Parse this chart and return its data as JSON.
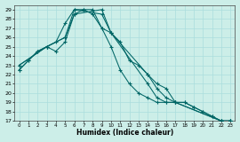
{
  "xlabel": "Humidex (Indice chaleur)",
  "bg_color": "#cceee8",
  "grid_color": "#aadddd",
  "line_color": "#006666",
  "xlim": [
    -0.5,
    23.5
  ],
  "ylim": [
    17,
    29.5
  ],
  "xticks": [
    0,
    1,
    2,
    3,
    4,
    5,
    6,
    7,
    8,
    9,
    10,
    11,
    12,
    13,
    14,
    15,
    16,
    17,
    18,
    19,
    20,
    21,
    22,
    23
  ],
  "yticks": [
    17,
    18,
    19,
    20,
    21,
    22,
    23,
    24,
    25,
    26,
    27,
    28,
    29
  ],
  "series": [
    {
      "x": [
        0,
        1,
        2,
        3,
        4,
        5,
        6,
        7,
        8,
        9,
        10,
        11,
        12,
        13,
        14,
        15,
        16,
        17,
        18,
        19,
        20,
        21,
        22,
        23
      ],
      "y": [
        22.5,
        23.5,
        24.5,
        25,
        25.5,
        27.5,
        29,
        29,
        28.5,
        27,
        26.5,
        25.5,
        23.5,
        23,
        22,
        21,
        20.5,
        19,
        19,
        18.5,
        18,
        17.5,
        17,
        17
      ]
    },
    {
      "x": [
        0,
        1,
        2,
        3,
        4,
        5,
        6,
        7,
        8,
        9,
        10,
        11,
        12,
        13,
        14,
        15,
        16,
        17,
        18,
        19,
        20,
        21,
        22,
        23
      ],
      "y": [
        22.5,
        23.5,
        24.5,
        25,
        24.5,
        25.5,
        28.5,
        29,
        29,
        27,
        25,
        22.5,
        21,
        20,
        19.5,
        19,
        19,
        19,
        19,
        18.5,
        18,
        17.5,
        17,
        17
      ]
    },
    {
      "x": [
        0,
        3,
        5,
        6,
        9,
        10,
        14,
        15,
        16,
        17,
        22,
        23
      ],
      "y": [
        23,
        25,
        26,
        28.5,
        29,
        26.5,
        22,
        20.5,
        19.5,
        19,
        17,
        17
      ]
    },
    {
      "x": [
        0,
        3,
        5,
        6,
        9,
        10,
        14,
        15,
        16,
        17,
        22,
        23
      ],
      "y": [
        23,
        25,
        26,
        29,
        28.5,
        26.5,
        21,
        19.5,
        19,
        19,
        17,
        17
      ]
    }
  ]
}
